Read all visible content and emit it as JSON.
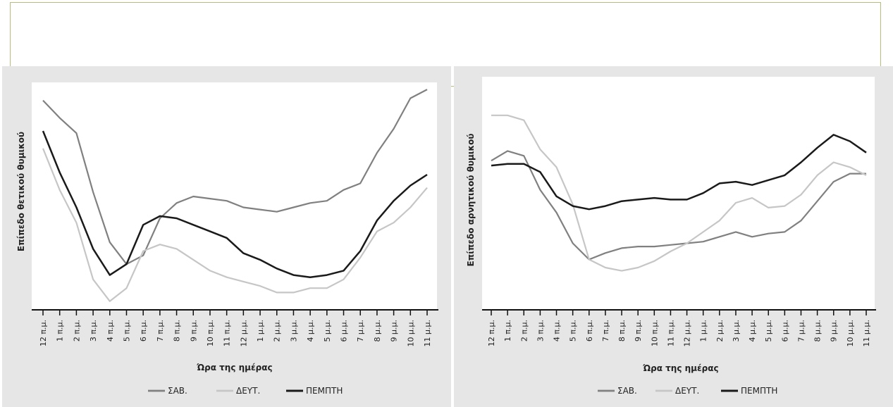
{
  "chart_data": [
    {
      "type": "line",
      "xlabel": "Ώρα της ημέρας",
      "ylabel": "Επίπεδο θετικού θυμικού",
      "categories": [
        "12 π.μ.",
        "1 π.μ.",
        "2 π.μ.",
        "3 π.μ.",
        "4 π.μ.",
        "5 π.μ.",
        "6 π.μ.",
        "7 π.μ.",
        "8 π.μ.",
        "9 π.μ.",
        "10 π.μ.",
        "11 π.μ.",
        "12 μ.μ.",
        "1 μ.μ.",
        "2 μ.μ.",
        "3 μ.μ.",
        "4 μ.μ.",
        "5 μ.μ.",
        "6 μ.μ.",
        "7 μ.μ.",
        "8 μ.μ.",
        "9 μ.μ.",
        "10 μ.μ.",
        "11 μ.μ."
      ],
      "ylim": [
        0,
        100
      ],
      "grid": false,
      "legend_position": "bottom",
      "series": [
        {
          "name": "ΣΑΒ.",
          "color": "#808080",
          "width": 2.2,
          "values": [
            94,
            86,
            79,
            52,
            29,
            19,
            23,
            40,
            47,
            50,
            49,
            48,
            45,
            44,
            43,
            45,
            47,
            48,
            53,
            56,
            70,
            81,
            95,
            99
          ]
        },
        {
          "name": "ΔΕΥΤ.",
          "color": "#c6c6c6",
          "width": 2.2,
          "values": [
            72,
            53,
            38,
            12,
            2,
            8,
            25,
            28,
            26,
            21,
            16,
            13,
            11,
            9,
            6,
            6,
            8,
            8,
            12,
            22,
            34,
            38,
            45,
            54
          ]
        },
        {
          "name": "ΠΕΜΠΤΗ",
          "color": "#1a1a1a",
          "width": 2.5,
          "values": [
            80,
            61,
            45,
            26,
            14,
            19,
            37,
            41,
            40,
            37,
            34,
            31,
            24,
            21,
            17,
            14,
            13,
            14,
            16,
            25,
            39,
            48,
            55,
            60
          ]
        }
      ]
    },
    {
      "type": "line",
      "xlabel": "Ώρα της ημέρας",
      "ylabel": "Επίπεδο αρνητικού θυμικού",
      "categories": [
        "12 π.μ.",
        "1 π.μ.",
        "2 π.μ.",
        "3 π.μ.",
        "4 π.μ.",
        "5 π.μ.",
        "6 π.μ.",
        "7 π.μ.",
        "8 π.μ.",
        "9 π.μ.",
        "10 π.μ.",
        "11 π.μ.",
        "12 μ.μ.",
        "1 μ.μ.",
        "2 μ.μ.",
        "3 μ.μ.",
        "4 μ.μ.",
        "5 μ.μ.",
        "6 μ.μ.",
        "7 μ.μ.",
        "8 μ.μ.",
        "9 μ.μ.",
        "10 μ.μ.",
        "11 μ.μ."
      ],
      "ylim": [
        0,
        100
      ],
      "grid": false,
      "legend_position": "bottom",
      "series": [
        {
          "name": "ΣΑΒ.",
          "color": "#808080",
          "width": 2.2,
          "values": [
            66,
            72,
            69,
            48,
            34,
            15,
            5,
            9,
            12,
            13,
            13,
            14,
            15,
            16,
            19,
            22,
            19,
            21,
            22,
            29,
            41,
            53,
            58,
            58
          ]
        },
        {
          "name": "ΔΕΥΤ.",
          "color": "#c6c6c6",
          "width": 2.2,
          "values": [
            94,
            94,
            91,
            73,
            62,
            39,
            5,
            0,
            -2,
            0,
            4,
            10,
            15,
            22,
            29,
            40,
            43,
            37,
            38,
            45,
            57,
            65,
            62,
            57
          ]
        },
        {
          "name": "ΠΕΜΠΤΗ",
          "color": "#1a1a1a",
          "width": 2.5,
          "values": [
            63,
            64,
            64,
            59,
            44,
            38,
            36,
            38,
            41,
            42,
            43,
            42,
            42,
            46,
            52,
            53,
            51,
            54,
            57,
            65,
            74,
            82,
            78,
            71
          ]
        }
      ]
    }
  ]
}
